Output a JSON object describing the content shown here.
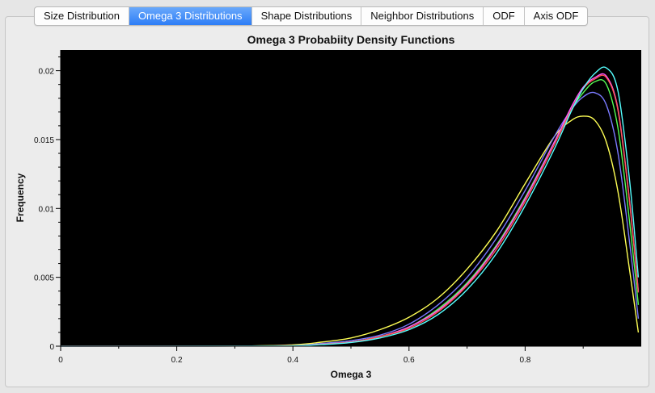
{
  "tabs": [
    {
      "label": "Size Distribution",
      "active": false
    },
    {
      "label": "Omega 3 Distributions",
      "active": true
    },
    {
      "label": "Shape Distributions",
      "active": false
    },
    {
      "label": "Neighbor Distributions",
      "active": false
    },
    {
      "label": "ODF",
      "active": false
    },
    {
      "label": "Axis ODF",
      "active": false
    }
  ],
  "chart_data": {
    "type": "line",
    "title": "Omega 3 Probabiity Density Functions",
    "xlabel": "Omega 3",
    "ylabel": "Frequency",
    "xlim": [
      0,
      1
    ],
    "ylim": [
      0,
      0.0215
    ],
    "x_ticks": [
      "0",
      "0.2",
      "0.4",
      "0.6",
      "0.8"
    ],
    "y_ticks": [
      "0",
      "0.005",
      "0.01",
      "0.015",
      "0.02"
    ],
    "background": "#000000",
    "grid": false,
    "legend": "none",
    "series": [
      {
        "color": "#ffff55",
        "x": [
          0,
          0.3,
          0.4,
          0.45,
          0.5,
          0.55,
          0.6,
          0.65,
          0.7,
          0.75,
          0.8,
          0.85,
          0.88,
          0.9,
          0.92,
          0.94,
          0.96,
          0.98,
          0.995
        ],
        "y": [
          0,
          1e-05,
          0.0001,
          0.0003,
          0.0006,
          0.0012,
          0.0021,
          0.0035,
          0.0056,
          0.0083,
          0.0118,
          0.0152,
          0.0164,
          0.0167,
          0.0164,
          0.0148,
          0.0112,
          0.0055,
          0.001
        ]
      },
      {
        "color": "#7a7aff",
        "x": [
          0,
          0.3,
          0.4,
          0.45,
          0.5,
          0.55,
          0.6,
          0.65,
          0.7,
          0.75,
          0.8,
          0.85,
          0.88,
          0.9,
          0.92,
          0.94,
          0.96,
          0.98,
          0.995
        ],
        "y": [
          0,
          1e-05,
          5e-05,
          0.0002,
          0.0004,
          0.0008,
          0.0016,
          0.003,
          0.005,
          0.0078,
          0.0113,
          0.0152,
          0.0172,
          0.0181,
          0.0184,
          0.0175,
          0.014,
          0.0075,
          0.002
        ]
      },
      {
        "color": "#55ff55",
        "x": [
          0,
          0.3,
          0.4,
          0.45,
          0.5,
          0.55,
          0.6,
          0.65,
          0.7,
          0.75,
          0.8,
          0.85,
          0.88,
          0.9,
          0.92,
          0.94,
          0.96,
          0.98,
          0.995
        ],
        "y": [
          0,
          1e-05,
          4e-05,
          0.00015,
          0.0003,
          0.0007,
          0.0014,
          0.0027,
          0.0046,
          0.0073,
          0.0108,
          0.0148,
          0.0172,
          0.0184,
          0.0192,
          0.019,
          0.0158,
          0.009,
          0.003
        ]
      },
      {
        "color": "#ff55ff",
        "x": [
          0,
          0.3,
          0.4,
          0.45,
          0.5,
          0.55,
          0.6,
          0.65,
          0.7,
          0.75,
          0.8,
          0.85,
          0.88,
          0.9,
          0.92,
          0.94,
          0.96,
          0.98,
          0.995
        ],
        "y": [
          0,
          1e-05,
          4e-05,
          0.00015,
          0.0003,
          0.0007,
          0.0014,
          0.0026,
          0.0045,
          0.0072,
          0.0107,
          0.0148,
          0.0174,
          0.0188,
          0.0195,
          0.0196,
          0.0172,
          0.0105,
          0.004
        ]
      },
      {
        "color": "#ff5555",
        "x": [
          0,
          0.3,
          0.4,
          0.45,
          0.5,
          0.55,
          0.6,
          0.65,
          0.7,
          0.75,
          0.8,
          0.85,
          0.88,
          0.9,
          0.92,
          0.94,
          0.96,
          0.98,
          0.995
        ],
        "y": [
          0,
          1e-05,
          4e-05,
          0.00014,
          0.0003,
          0.0007,
          0.0013,
          0.0025,
          0.0044,
          0.007,
          0.0105,
          0.0146,
          0.0172,
          0.0187,
          0.0194,
          0.0195,
          0.0171,
          0.0104,
          0.0039
        ]
      },
      {
        "color": "#55ffff",
        "x": [
          0,
          0.3,
          0.4,
          0.45,
          0.5,
          0.55,
          0.6,
          0.65,
          0.7,
          0.75,
          0.8,
          0.85,
          0.88,
          0.9,
          0.92,
          0.94,
          0.96,
          0.98,
          0.995
        ],
        "y": [
          0,
          1e-05,
          3e-05,
          0.00012,
          0.00027,
          0.0006,
          0.0012,
          0.0023,
          0.0041,
          0.0067,
          0.0102,
          0.0143,
          0.0171,
          0.0187,
          0.0198,
          0.0202,
          0.0185,
          0.012,
          0.005
        ]
      }
    ]
  }
}
